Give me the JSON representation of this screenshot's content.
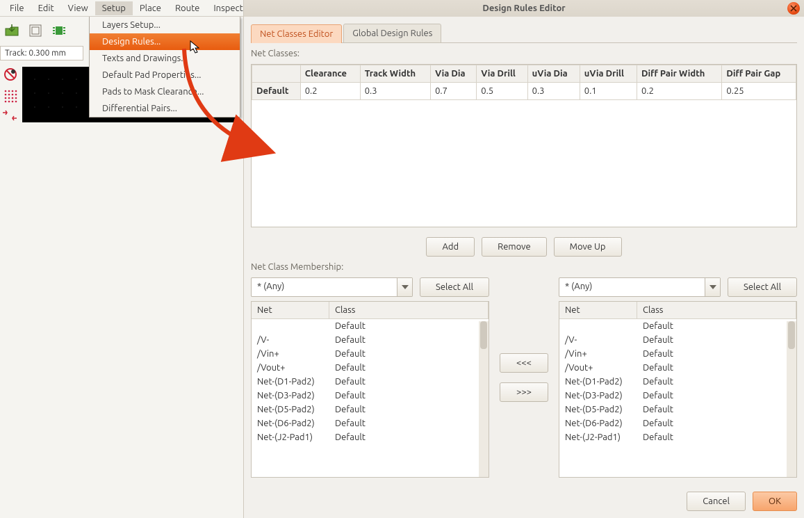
{
  "menubar": [
    "File",
    "Edit",
    "View",
    "Setup",
    "Place",
    "Route",
    "Inspect"
  ],
  "menubar_active_index": 3,
  "track_indicator": "Track: 0.300 mm",
  "dropdown_items": [
    "Layers Setup...",
    "Design Rules...",
    "Texts and Drawings...",
    "Default Pad Properties...",
    "Pads to Mask Clearance...",
    "Differential Pairs..."
  ],
  "dropdown_hover_index": 1,
  "dialog": {
    "title": "Design Rules Editor",
    "tabs": [
      "Net Classes Editor",
      "Global Design Rules"
    ],
    "tab_active_index": 0,
    "net_classes_label": "Net Classes:",
    "net_classes_columns": [
      "",
      "Clearance",
      "Track Width",
      "Via Dia",
      "Via Drill",
      "uVia Dia",
      "uVia Drill",
      "Diff Pair Width",
      "Diff Pair Gap"
    ],
    "net_classes_rows": [
      {
        "name": "Default",
        "values": [
          "0.2",
          "0.3",
          "0.7",
          "0.5",
          "0.3",
          "0.1",
          "0.2",
          "0.25"
        ]
      }
    ],
    "btn_add": "Add",
    "btn_remove": "Remove",
    "btn_moveup": "Move Up",
    "membership_label": "Net Class Membership:",
    "combo_value": "* (Any)",
    "btn_select_all": "Select All",
    "list_columns": [
      "Net",
      "Class"
    ],
    "list_rows": [
      [
        "",
        "Default"
      ],
      [
        "/V-",
        "Default"
      ],
      [
        "/Vin+",
        "Default"
      ],
      [
        "/Vout+",
        "Default"
      ],
      [
        "Net-(D1-Pad2)",
        "Default"
      ],
      [
        "Net-(D3-Pad2)",
        "Default"
      ],
      [
        "Net-(D5-Pad2)",
        "Default"
      ],
      [
        "Net-(D6-Pad2)",
        "Default"
      ],
      [
        "Net-(J2-Pad1)",
        "Default"
      ]
    ],
    "btn_left": "<<<",
    "btn_right": ">>>",
    "btn_cancel": "Cancel",
    "btn_ok": "OK"
  },
  "colors": {
    "accent": "#e85c0f",
    "dialog_bg": "#f2f0ec",
    "border": "#c8c2b6"
  }
}
